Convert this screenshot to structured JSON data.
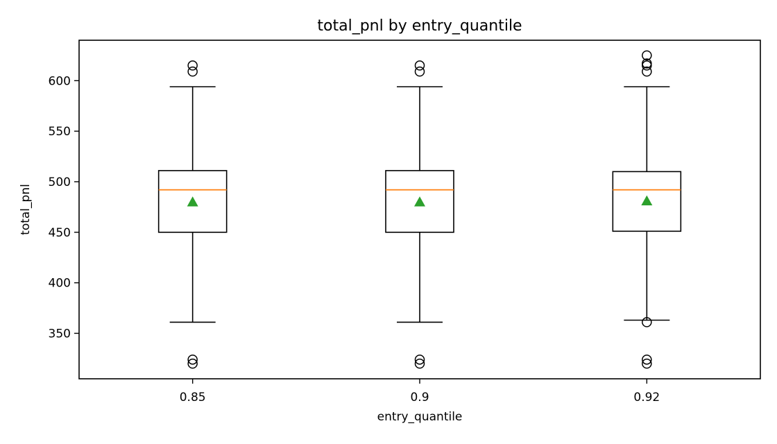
{
  "chart_data": {
    "type": "box",
    "title": "total_pnl by entry_quantile",
    "xlabel": "entry_quantile",
    "ylabel": "total_pnl",
    "categories": [
      "0.85",
      "0.9",
      "0.92"
    ],
    "ylim": [
      305,
      640
    ],
    "yticks": [
      350,
      400,
      450,
      500,
      550,
      600
    ],
    "ytick_labels": [
      "350",
      "400",
      "450",
      "500",
      "550",
      "600"
    ],
    "grid": false,
    "legend": "none",
    "boxes": [
      {
        "category": "0.85",
        "whisker_low": 361,
        "q1": 450,
        "median": 492,
        "q3": 511,
        "whisker_high": 594,
        "mean": 480,
        "outliers": [
          320,
          324,
          609,
          615
        ]
      },
      {
        "category": "0.9",
        "whisker_low": 361,
        "q1": 450,
        "median": 492,
        "q3": 511,
        "whisker_high": 594,
        "mean": 480,
        "outliers": [
          320,
          324,
          609,
          615
        ]
      },
      {
        "category": "0.92",
        "whisker_low": 363,
        "q1": 451,
        "median": 492,
        "q3": 510,
        "whisker_high": 594,
        "mean": 481,
        "outliers": [
          320,
          324,
          361,
          609,
          615,
          617,
          625
        ]
      }
    ],
    "colors": {
      "box": "#000000",
      "median": "#ff7f0e",
      "mean": "#2ca02c",
      "outlier": "#000000"
    }
  }
}
